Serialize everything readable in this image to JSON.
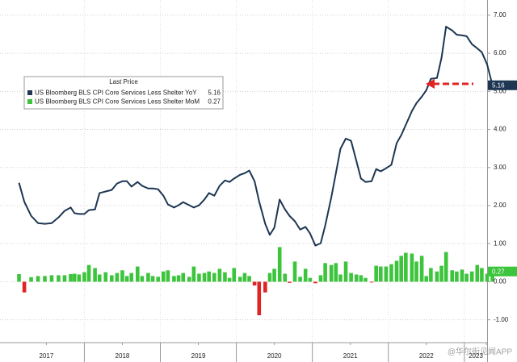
{
  "chart_data": {
    "type": "line_bar",
    "legend_title": "Last Price",
    "x": [
      2017.14,
      2017.21,
      2017.3,
      2017.39,
      2017.48,
      2017.57,
      2017.66,
      2017.74,
      2017.82,
      2017.87,
      2017.93,
      2018,
      2018.06,
      2018.14,
      2018.2,
      2018.28,
      2018.36,
      2018.43,
      2018.5,
      2018.56,
      2018.62,
      2018.7,
      2018.76,
      2018.84,
      2018.9,
      2018.97,
      2019.04,
      2019.1,
      2019.18,
      2019.24,
      2019.3,
      2019.38,
      2019.44,
      2019.51,
      2019.58,
      2019.64,
      2019.71,
      2019.78,
      2019.85,
      2019.91,
      2019.97,
      2020.05,
      2020.11,
      2020.17,
      2020.24,
      2020.3,
      2020.38,
      2020.44,
      2020.5,
      2020.57,
      2020.64,
      2020.7,
      2020.77,
      2020.84,
      2020.91,
      2020.97,
      2021.04,
      2021.11,
      2021.17,
      2021.25,
      2021.31,
      2021.37,
      2021.44,
      2021.51,
      2021.58,
      2021.64,
      2021.7,
      2021.78,
      2021.84,
      2021.9,
      2021.97,
      2022.04,
      2022.11,
      2022.17,
      2022.23,
      2022.31,
      2022.37,
      2022.44,
      2022.5,
      2022.56,
      2022.64,
      2022.7,
      2022.76,
      2022.84,
      2022.9,
      2022.97,
      2023.03,
      2023.1,
      2023.17,
      2023.23,
      2023.3,
      2023.37
    ],
    "series": [
      {
        "name": "US Bloomberg BLS CPI Core Services Less Shelter YoY",
        "type": "line",
        "color": "#1d3653",
        "values": [
          2.6,
          2.1,
          1.73,
          1.54,
          1.52,
          1.54,
          1.69,
          1.86,
          1.95,
          1.8,
          1.78,
          1.78,
          1.88,
          1.9,
          2.33,
          2.37,
          2.41,
          2.58,
          2.64,
          2.64,
          2.5,
          2.62,
          2.52,
          2.45,
          2.45,
          2.43,
          2.26,
          2.03,
          1.95,
          2.01,
          2.09,
          2.01,
          1.95,
          2.01,
          2.16,
          2.33,
          2.26,
          2.52,
          2.66,
          2.62,
          2.71,
          2.81,
          2.85,
          2.92,
          2.64,
          2.11,
          1.52,
          1.23,
          1.42,
          2.16,
          1.9,
          1.73,
          1.59,
          1.37,
          1.44,
          1.27,
          0.95,
          1.01,
          1.48,
          2.22,
          2.85,
          3.49,
          3.76,
          3.7,
          3.17,
          2.71,
          2.62,
          2.64,
          2.96,
          2.9,
          2.98,
          3.07,
          3.64,
          3.85,
          4.12,
          4.48,
          4.69,
          4.86,
          5.03,
          5.33,
          5.35,
          5.88,
          6.7,
          6.6,
          6.49,
          6.47,
          6.45,
          6.24,
          6.13,
          6.03,
          5.71,
          5.16
        ]
      },
      {
        "name": "US Bloomberg BLS CPI Core Services Less Shelter MoM",
        "type": "bar",
        "color": "#3cc43c",
        "negative_color": "#e02424",
        "values": [
          0.2,
          -0.28,
          0.12,
          0.15,
          0.15,
          0.17,
          0.17,
          0.17,
          0.2,
          0.21,
          0.19,
          0.25,
          0.44,
          0.36,
          0.19,
          0.25,
          0.17,
          0.23,
          0.3,
          0.15,
          0.23,
          0.4,
          0.15,
          0.23,
          0.15,
          0.13,
          0.27,
          0.3,
          0.15,
          0.17,
          0.23,
          0.13,
          0.4,
          0.21,
          0.23,
          0.27,
          0.23,
          0.34,
          0.25,
          0.1,
          0.36,
          0.13,
          0.23,
          0.15,
          -0.1,
          -0.88,
          -0.28,
          0.23,
          0.34,
          0.91,
          0.21,
          -0.03,
          0.53,
          0.13,
          0.34,
          0.1,
          -0.04,
          0.17,
          0.49,
          0.44,
          0.49,
          0.19,
          0.53,
          0.23,
          0.19,
          0.17,
          0.1,
          -0.02,
          0.42,
          0.4,
          0.4,
          0.46,
          0.55,
          0.68,
          0.76,
          0.74,
          0.53,
          0.68,
          0.15,
          0.36,
          0.27,
          0.42,
          0.78,
          0.3,
          0.27,
          0.32,
          0.21,
          0.27,
          0.44,
          0.36,
          0.21,
          0.27
        ]
      }
    ],
    "xlim": [
      2016.89,
      2023.3
    ],
    "xticks": [
      {
        "value": 2017.5,
        "label": "2017"
      },
      {
        "value": 2018.5,
        "label": "2018"
      },
      {
        "value": 2019.5,
        "label": "2019"
      },
      {
        "value": 2020.5,
        "label": "2020"
      },
      {
        "value": 2021.5,
        "label": "2021"
      },
      {
        "value": 2022.5,
        "label": "2022"
      },
      {
        "value": 2023.5,
        "label": "2023"
      }
    ],
    "ylim": [
      -1.6,
      7.4
    ],
    "yticks": [
      {
        "value": -1,
        "label": "-1.00"
      },
      {
        "value": 0,
        "label": "0.00"
      },
      {
        "value": 1,
        "label": "1.00"
      },
      {
        "value": 2,
        "label": "2.00"
      },
      {
        "value": 3,
        "label": "3.00"
      },
      {
        "value": 4,
        "label": "4.00"
      },
      {
        "value": 5,
        "label": "5.00"
      },
      {
        "value": 6,
        "label": "6.00"
      },
      {
        "value": 7,
        "label": "7.00"
      }
    ],
    "grid": true,
    "watermark": "@华尔街见闻APP"
  }
}
